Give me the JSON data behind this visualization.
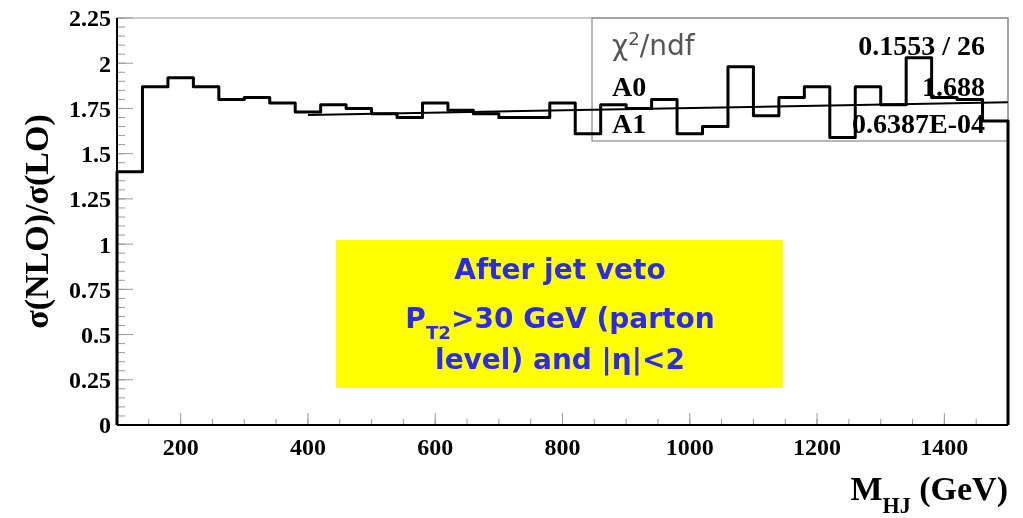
{
  "chart_data": {
    "type": "histogram",
    "xlabel": "M$_{HJ}$ (GeV)",
    "ylabel": "σ(NLO)/σ(LO)",
    "xlim": [
      100,
      1500
    ],
    "xticks": [
      200,
      400,
      600,
      800,
      1000,
      1200,
      1400
    ],
    "ylim": [
      0,
      2.25
    ],
    "yticks": [
      0,
      0.25,
      0.5,
      0.75,
      1,
      1.25,
      1.5,
      1.75,
      2,
      2.25
    ],
    "series": [
      {
        "color": "#000000",
        "bins": [
          100,
          140,
          180,
          220,
          260,
          300,
          340,
          380,
          420,
          460,
          500,
          540,
          580,
          620,
          660,
          700,
          740,
          780,
          820,
          860,
          900,
          940,
          980,
          1020,
          1060,
          1100,
          1140,
          1180,
          1220,
          1260,
          1300,
          1340,
          1380,
          1420,
          1460,
          1500
        ],
        "values": [
          1.4,
          1.87,
          1.92,
          1.87,
          1.8,
          1.81,
          1.78,
          1.73,
          1.77,
          1.75,
          1.72,
          1.7,
          1.78,
          1.74,
          1.72,
          1.7,
          1.7,
          1.78,
          1.61,
          1.77,
          1.75,
          1.8,
          1.61,
          1.65,
          1.98,
          1.71,
          1.81,
          1.87,
          1.59,
          1.87,
          1.77,
          2.03,
          1.81,
          1.8,
          1.68
        ]
      },
      {
        "type": "line",
        "color": "#000000",
        "x": [
          400,
          1500
        ],
        "values": [
          1.714,
          1.784
        ]
      }
    ],
    "annotations": [
      "χ$^{2}$/ndf",
      "0.1553 / 26",
      "A0",
      "1.688",
      "A1",
      "0.6387E-04",
      "After jet veto",
      "P$_{T2}$>30 GeV (parton",
      "level) and |η|<2"
    ],
    "grid": false
  }
}
